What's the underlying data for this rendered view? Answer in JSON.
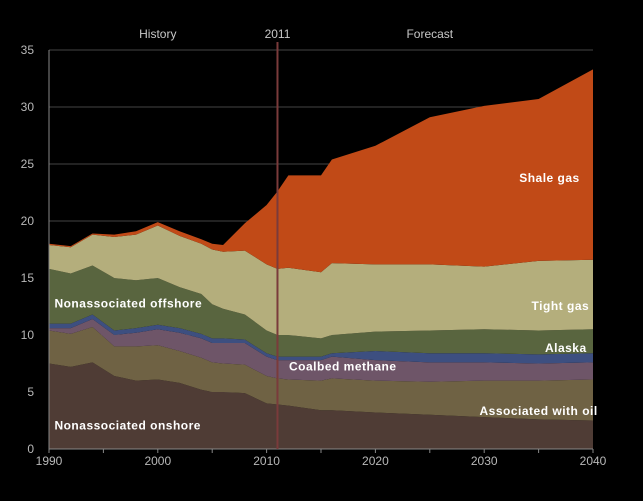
{
  "chart_data": {
    "type": "area",
    "stacked": true,
    "x": [
      1990,
      1992,
      1994,
      1996,
      1998,
      2000,
      2002,
      2004,
      2005,
      2006,
      2008,
      2010,
      2011,
      2012,
      2015,
      2016,
      2020,
      2025,
      2030,
      2035,
      2040
    ],
    "xlim": [
      1990,
      2040
    ],
    "ylim": [
      0,
      35
    ],
    "xticks": [
      1990,
      2000,
      2010,
      2020,
      2030,
      2040
    ],
    "yticks": [
      0,
      5,
      10,
      15,
      20,
      25,
      30,
      35
    ],
    "header_labels": [
      "History",
      "2011",
      "Forecast"
    ],
    "divider_year": 2011,
    "grid": "horizontal",
    "series": [
      {
        "name": "Nonassociated onshore",
        "color": "#4f3c35",
        "values": [
          7.5,
          7.2,
          7.6,
          6.4,
          6.0,
          6.1,
          5.8,
          5.2,
          5.0,
          5.0,
          4.9,
          4.0,
          3.9,
          3.8,
          3.4,
          3.4,
          3.2,
          3.0,
          2.8,
          2.6,
          2.5
        ]
      },
      {
        "name": "Associated with oil",
        "color": "#6f6244",
        "values": [
          2.9,
          2.9,
          3.1,
          2.6,
          3.0,
          3.0,
          2.8,
          2.8,
          2.6,
          2.5,
          2.5,
          2.4,
          2.3,
          2.3,
          2.6,
          2.8,
          2.8,
          2.9,
          3.2,
          3.4,
          3.6
        ]
      },
      {
        "name": "Coalbed methane",
        "color": "#6e5568",
        "values": [
          0.2,
          0.5,
          0.7,
          1.0,
          1.2,
          1.4,
          1.6,
          1.7,
          1.7,
          1.8,
          1.9,
          1.7,
          1.6,
          1.7,
          1.8,
          1.9,
          1.8,
          1.7,
          1.6,
          1.5,
          1.5
        ]
      },
      {
        "name": "Alaska",
        "color": "#3d4f80",
        "values": [
          0.4,
          0.4,
          0.4,
          0.4,
          0.4,
          0.4,
          0.4,
          0.4,
          0.4,
          0.4,
          0.3,
          0.3,
          0.3,
          0.3,
          0.3,
          0.3,
          0.8,
          0.8,
          0.8,
          0.8,
          0.8
        ]
      },
      {
        "name": "Nonassociated offshore",
        "color": "#59653f",
        "values": [
          4.8,
          4.4,
          4.3,
          4.6,
          4.2,
          4.1,
          3.6,
          3.5,
          3.0,
          2.6,
          2.2,
          2.0,
          1.9,
          1.9,
          1.6,
          1.6,
          1.7,
          2.0,
          2.1,
          2.1,
          2.1
        ]
      },
      {
        "name": "Tight gas",
        "color": "#b4ae7c",
        "values": [
          2.1,
          2.3,
          2.7,
          3.6,
          4.0,
          4.6,
          4.5,
          4.4,
          4.8,
          5.0,
          5.6,
          5.8,
          5.8,
          5.9,
          5.8,
          6.3,
          5.9,
          5.8,
          5.5,
          6.1,
          6.1
        ]
      },
      {
        "name": "Shale gas",
        "color": "#c14a17",
        "values": [
          0.1,
          0.1,
          0.1,
          0.2,
          0.3,
          0.3,
          0.4,
          0.4,
          0.5,
          0.6,
          2.4,
          5.2,
          6.8,
          8.1,
          8.5,
          9.1,
          10.4,
          12.9,
          14.1,
          14.2,
          16.7
        ]
      }
    ]
  }
}
